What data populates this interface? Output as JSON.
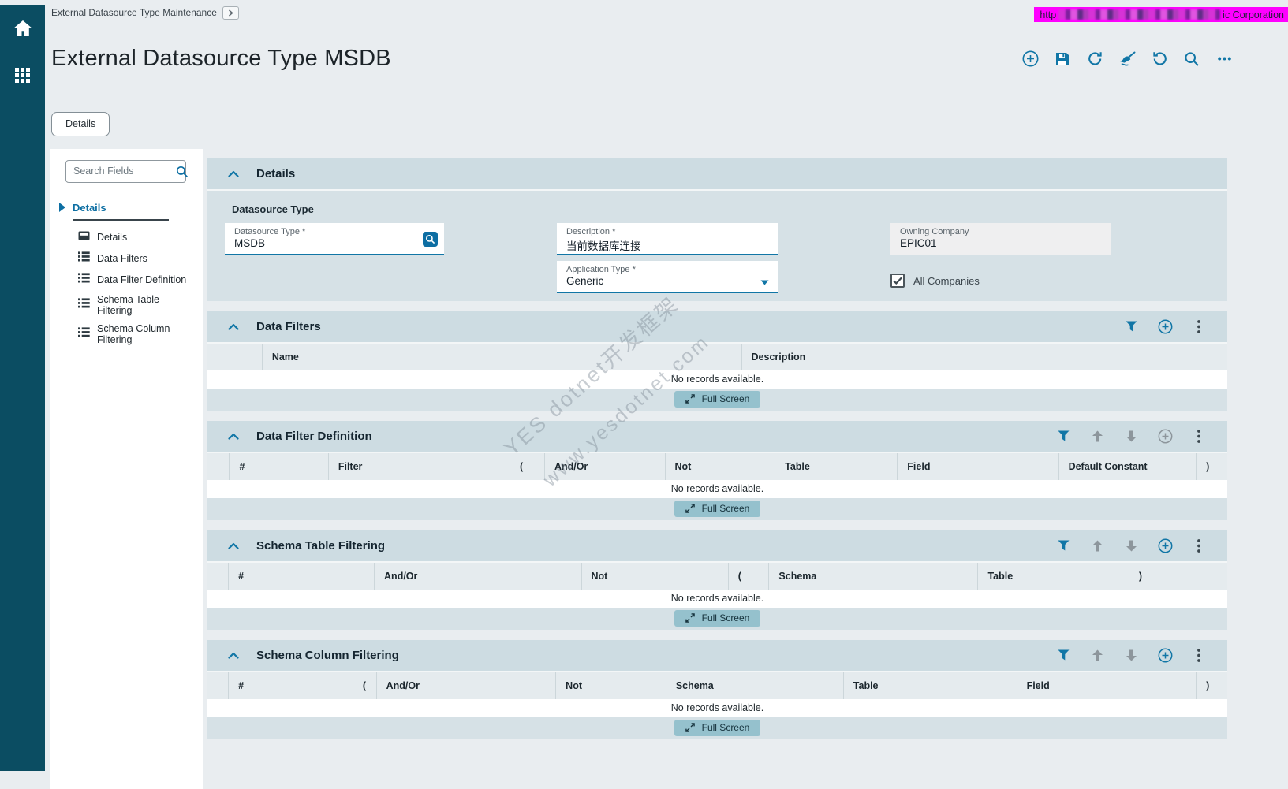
{
  "nav_rail": {
    "icons": [
      "home",
      "apps-grid"
    ]
  },
  "header": {
    "breadcrumb": "External Datasource Type Maintenance",
    "title": "External Datasource Type MSDB",
    "banner": {
      "visible_prefix": "http",
      "visible_suffix": "ic Corporation",
      "bg_color": "#ff00ff"
    },
    "toolbar_icons": [
      "add",
      "save",
      "refresh",
      "clear",
      "undo",
      "search",
      "overflow"
    ]
  },
  "tab": {
    "label": "Details"
  },
  "field_panel": {
    "search_placeholder": "Search Fields",
    "group_label": "Details",
    "items": [
      {
        "label": "Details",
        "icon": "form-icon"
      },
      {
        "label": "Data Filters",
        "icon": "list-icon"
      },
      {
        "label": "Data Filter Definition",
        "icon": "list-icon"
      },
      {
        "label": "Schema Table Filtering",
        "icon": "list-icon"
      },
      {
        "label": "Schema Column Filtering",
        "icon": "list-icon"
      }
    ]
  },
  "details_section": {
    "title": "Details",
    "group_label": "Datasource Type",
    "datasource_type": {
      "label": "Datasource Type *",
      "value": "MSDB"
    },
    "description": {
      "label": "Description *",
      "value": "当前数据库连接"
    },
    "owning_company": {
      "label": "Owning Company",
      "value": "EPIC01"
    },
    "application_type": {
      "label": "Application Type *",
      "value": "Generic"
    },
    "all_companies": {
      "label": "All Companies",
      "checked": true
    }
  },
  "grids": [
    {
      "title": "Data Filters",
      "columns": [
        "",
        "Name",
        "Description"
      ],
      "empty_text": "No records available.",
      "full_screen_label": "Full Screen",
      "icons": [
        {
          "name": "filter",
          "enabled": true
        },
        {
          "name": "add",
          "enabled": true
        },
        {
          "name": "overflow",
          "enabled": true
        }
      ]
    },
    {
      "title": "Data Filter Definition",
      "columns": [
        "",
        "#",
        "Filter",
        "(",
        "And/Or",
        "Not",
        "Table",
        "Field",
        "Default Constant",
        ")"
      ],
      "empty_text": "No records available.",
      "full_screen_label": "Full Screen",
      "icons": [
        {
          "name": "filter",
          "enabled": true
        },
        {
          "name": "move-up",
          "enabled": false
        },
        {
          "name": "move-down",
          "enabled": false
        },
        {
          "name": "add",
          "enabled": false
        },
        {
          "name": "overflow",
          "enabled": true
        }
      ]
    },
    {
      "title": "Schema Table Filtering",
      "columns": [
        "",
        "#",
        "And/Or",
        "Not",
        "(",
        "Schema",
        "Table",
        ")"
      ],
      "empty_text": "No records available.",
      "full_screen_label": "Full Screen",
      "icons": [
        {
          "name": "filter",
          "enabled": true
        },
        {
          "name": "move-up",
          "enabled": false
        },
        {
          "name": "move-down",
          "enabled": false
        },
        {
          "name": "add",
          "enabled": true
        },
        {
          "name": "overflow",
          "enabled": true
        }
      ]
    },
    {
      "title": "Schema Column Filtering",
      "columns": [
        "",
        "#",
        "(",
        "And/Or",
        "Not",
        "Schema",
        "Table",
        "Field",
        ")"
      ],
      "empty_text": "No records available.",
      "full_screen_label": "Full Screen",
      "icons": [
        {
          "name": "filter",
          "enabled": true
        },
        {
          "name": "move-up",
          "enabled": false
        },
        {
          "name": "move-down",
          "enabled": false
        },
        {
          "name": "add",
          "enabled": true
        },
        {
          "name": "overflow",
          "enabled": true
        }
      ]
    }
  ],
  "watermark": {
    "line1": "YES dotnet开发框架",
    "line2": "www.yesdotnet.com"
  },
  "colors": {
    "accent_blue": "#1176a6",
    "rail_teal": "#0b4d62",
    "banner_magenta": "#ff00ff"
  }
}
